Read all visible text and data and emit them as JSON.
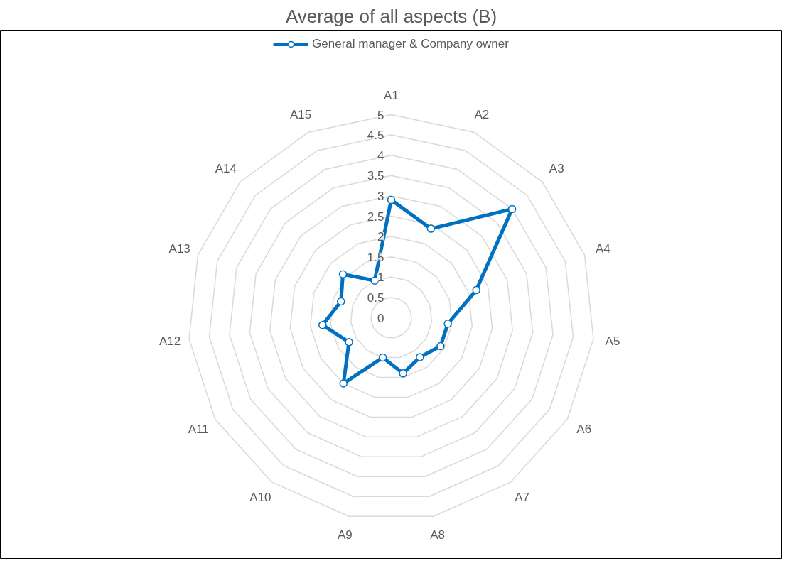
{
  "chart_data": {
    "type": "radar",
    "title": "Average of all aspects (B)",
    "categories": [
      "A1",
      "A2",
      "A3",
      "A4",
      "A5",
      "A6",
      "A7",
      "A8",
      "A9",
      "A10",
      "A11",
      "A12",
      "A13",
      "A14",
      "A15"
    ],
    "series": [
      {
        "name": "General manager & Company owner",
        "color": "#0070c0",
        "values": [
          2.9,
          2.4,
          4.0,
          2.2,
          1.4,
          1.4,
          1.2,
          1.4,
          1.0,
          2.0,
          1.2,
          1.7,
          1.3,
          1.6,
          1.0
        ]
      }
    ],
    "ylim": [
      0,
      5
    ],
    "yticks": [
      0,
      0.5,
      1,
      1.5,
      2,
      2.5,
      3,
      3.5,
      4,
      4.5,
      5
    ],
    "grid": true,
    "legend": "top",
    "marker": "circle",
    "line_style": "solid"
  }
}
